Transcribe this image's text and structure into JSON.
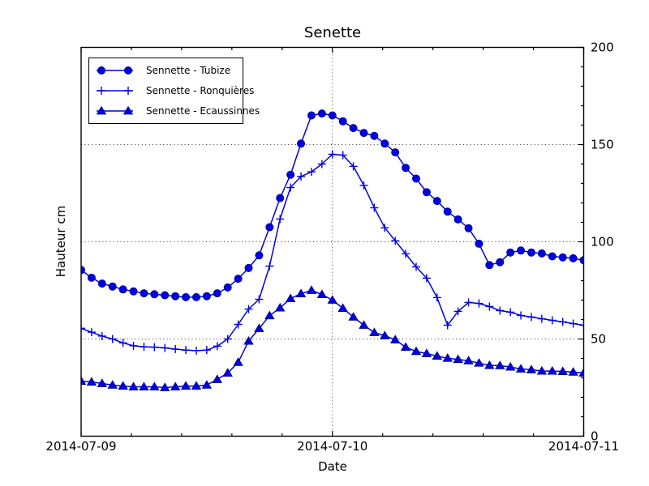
{
  "figure": {
    "title": "Senette",
    "xlabel": "Date",
    "ylabel": "Hauteur cm"
  },
  "chart_data": {
    "type": "line",
    "title": "Senette",
    "xlabel": "Date",
    "ylabel": "Hauteur cm",
    "x_tick_labels": [
      "2014-07-09",
      "2014-07-10",
      "2014-07-11"
    ],
    "x_minor_intervals_per_day": 5,
    "y_ticks": [
      0,
      50,
      100,
      150,
      200
    ],
    "y_minor_step": 10,
    "ylim": [
      0,
      200
    ],
    "y_tick_side": "right",
    "grid": {
      "style": "dotted",
      "horizontal_at": [
        50,
        100,
        150
      ],
      "vertical_at_day_index": 1
    },
    "legend_position": "upper-left",
    "sampling": "hourly from 2014-07-09 00:00 to 2014-07-11 00:00",
    "line_color": "#0000e6",
    "marker_edge_color": "#000080",
    "series": [
      {
        "name": "Sennette - Tubize",
        "marker": "circle",
        "values": [
          85.5,
          81.5,
          78.5,
          77,
          75.5,
          74.5,
          73.5,
          73,
          72.5,
          72,
          71.5,
          71.5,
          72,
          73.5,
          76.5,
          81,
          86.5,
          93,
          107.5,
          122.5,
          134.5,
          150.5,
          165,
          166,
          165,
          162,
          158.5,
          156,
          154.5,
          150.5,
          146,
          138,
          132.5,
          125.5,
          121,
          115.5,
          111.5,
          107,
          99,
          88,
          89.5,
          94.5,
          95.5,
          94.5,
          94,
          92.5,
          92,
          91.5,
          90.5
        ]
      },
      {
        "name": "Sennette - Ronquières",
        "marker": "plus",
        "values": [
          55.5,
          53.5,
          51.5,
          50,
          48,
          46.5,
          46,
          45.8,
          45.4,
          44.8,
          44.3,
          44,
          44.3,
          46.3,
          50,
          57.5,
          65.4,
          70.4,
          87.5,
          111.7,
          127.9,
          133.6,
          136,
          140,
          145,
          144.6,
          138.8,
          129,
          117.5,
          107.2,
          100.5,
          93.8,
          87.1,
          81.3,
          71.3,
          57.1,
          64.2,
          68.8,
          68.3,
          66.7,
          64.6,
          63.8,
          62.1,
          61.3,
          60.4,
          59.6,
          58.8,
          57.9,
          57.1
        ]
      },
      {
        "name": "Sennette - Ecaussinnes",
        "marker": "triangle",
        "values": [
          28.3,
          27.9,
          27.1,
          26.3,
          25.8,
          25.4,
          25.4,
          25.4,
          25,
          25.4,
          25.8,
          25.8,
          26.3,
          29.2,
          32.5,
          38,
          48.9,
          55.4,
          62,
          66,
          70.8,
          73.3,
          75,
          72.9,
          70,
          65.8,
          61.3,
          57.1,
          53.3,
          51.7,
          49.6,
          45.8,
          43.6,
          42.5,
          41.2,
          40.1,
          39.5,
          38.8,
          37.6,
          36.4,
          36.3,
          35.6,
          34.6,
          34.2,
          33.5,
          33.5,
          33.3,
          33,
          32.5
        ]
      }
    ]
  }
}
